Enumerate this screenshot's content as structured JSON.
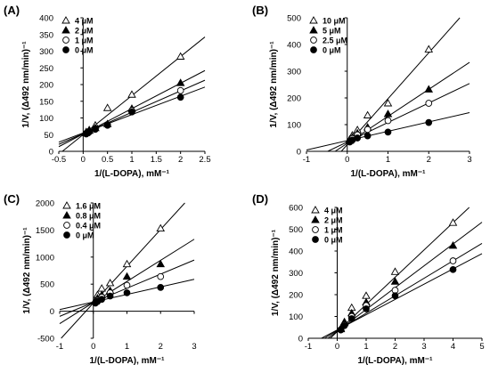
{
  "chart_data": [
    {
      "type": "scatter",
      "panel_label": "(A)",
      "xlabel": "1/(L-DOPA), mM⁻¹",
      "ylabel": "1/V, (Δ492 nm/min)⁻¹",
      "xlim": [
        -0.5,
        2.5
      ],
      "ylim": [
        0,
        400
      ],
      "xticks": [
        -0.5,
        0,
        0.5,
        1,
        1.5,
        2,
        2.5
      ],
      "xtick_labels": [
        "-0.5",
        "0",
        "0.5",
        "1",
        "1.5",
        "2",
        "2.5"
      ],
      "yticks": [
        0,
        50,
        100,
        150,
        200,
        250,
        300,
        350,
        400
      ],
      "ytick_labels": [
        "0",
        "50",
        "100",
        "150",
        "200",
        "250",
        "300",
        "350",
        "400"
      ],
      "legend_position": "top-left",
      "series": [
        {
          "name": "4 μM",
          "marker": "triangle-open",
          "x": [
            0.0625,
            0.125,
            0.25,
            0.5,
            1,
            2
          ],
          "y": [
            58,
            64,
            78,
            130,
            170,
            284
          ],
          "line_intercept": 50,
          "line_slope": 117
        },
        {
          "name": "2 μM",
          "marker": "triangle-filled",
          "x": [
            0.0625,
            0.125,
            0.25,
            0.5,
            1,
            2
          ],
          "y": [
            55,
            62,
            70,
            82,
            128,
            205
          ],
          "line_intercept": 52,
          "line_slope": 76
        },
        {
          "name": "1 μM",
          "marker": "circle-open",
          "x": [
            0.0625,
            0.125,
            0.25,
            0.5,
            1,
            2
          ],
          "y": [
            54,
            60,
            68,
            80,
            122,
            182
          ],
          "line_intercept": 53,
          "line_slope": 64
        },
        {
          "name": "0 μM",
          "marker": "circle-filled",
          "x": [
            0.0625,
            0.125,
            0.25,
            0.5,
            1,
            2
          ],
          "y": [
            52,
            58,
            66,
            78,
            118,
            162
          ],
          "line_intercept": 55,
          "line_slope": 55
        }
      ]
    },
    {
      "type": "scatter",
      "panel_label": "(B)",
      "xlabel": "1/(L-DOPA), mM⁻¹",
      "ylabel": "1/V, (Δ492 nm/min)⁻¹",
      "xlim": [
        -1,
        3
      ],
      "ylim": [
        0,
        500
      ],
      "xticks": [
        -1,
        0,
        1,
        2,
        3
      ],
      "xtick_labels": [
        "-1",
        "0",
        "1",
        "2",
        "3"
      ],
      "yticks": [
        0,
        100,
        200,
        300,
        400,
        500
      ],
      "ytick_labels": [
        "0",
        "100",
        "200",
        "300",
        "400",
        "500"
      ],
      "legend_position": "top-left",
      "series": [
        {
          "name": "10 μM",
          "marker": "triangle-open",
          "x": [
            0.0625,
            0.125,
            0.25,
            0.5,
            1,
            2
          ],
          "y": [
            45,
            60,
            80,
            135,
            180,
            382
          ],
          "line_intercept": 25,
          "line_slope": 172
        },
        {
          "name": "5 μM",
          "marker": "triangle-filled",
          "x": [
            0.0625,
            0.125,
            0.25,
            0.5,
            1,
            2
          ],
          "y": [
            40,
            52,
            68,
            90,
            140,
            232
          ],
          "line_intercept": 30,
          "line_slope": 101
        },
        {
          "name": "2.5 μM",
          "marker": "circle-open",
          "x": [
            0.0625,
            0.125,
            0.25,
            0.5,
            1,
            2
          ],
          "y": [
            38,
            48,
            62,
            82,
            115,
            180
          ],
          "line_intercept": 35,
          "line_slope": 73
        },
        {
          "name": "0 μM",
          "marker": "circle-filled",
          "x": [
            0.0625,
            0.125,
            0.25,
            0.5,
            1,
            2
          ],
          "y": [
            35,
            42,
            50,
            58,
            72,
            108
          ],
          "line_intercept": 40,
          "line_slope": 35
        }
      ]
    },
    {
      "type": "scatter",
      "panel_label": "(C)",
      "xlabel": "1/(L-DOPA), mM⁻¹",
      "ylabel": "1/V, (Δ492 nm/min)⁻¹",
      "xlim": [
        -1,
        3
      ],
      "ylim": [
        -500,
        2000
      ],
      "xticks": [
        -1,
        0,
        1,
        2,
        3
      ],
      "xtick_labels": [
        "-1",
        "0",
        "1",
        "2",
        "3"
      ],
      "yticks": [
        -500,
        0,
        500,
        1000,
        1500,
        2000
      ],
      "ytick_labels": [
        "-500",
        "0",
        "500",
        "1000",
        "1500",
        "2000"
      ],
      "legend_position": "top-left",
      "series": [
        {
          "name": "1.6 μM",
          "marker": "triangle-open",
          "x": [
            0.0625,
            0.125,
            0.25,
            0.5,
            1,
            2
          ],
          "y": [
            200,
            300,
            420,
            520,
            870,
            1530
          ],
          "line_intercept": 150,
          "line_slope": 680
        },
        {
          "name": "0.8 μM",
          "marker": "triangle-filled",
          "x": [
            0.0625,
            0.125,
            0.25,
            0.5,
            1,
            2
          ],
          "y": [
            180,
            240,
            300,
            380,
            640,
            870
          ],
          "line_intercept": 160,
          "line_slope": 390
        },
        {
          "name": "0.4 μM",
          "marker": "circle-open",
          "x": [
            0.0625,
            0.125,
            0.25,
            0.5,
            1,
            2
          ],
          "y": [
            160,
            200,
            260,
            340,
            480,
            640
          ],
          "line_intercept": 165,
          "line_slope": 260
        },
        {
          "name": "0 μM",
          "marker": "circle-filled",
          "x": [
            0.0625,
            0.125,
            0.25,
            0.5,
            1,
            2
          ],
          "y": [
            150,
            180,
            220,
            280,
            340,
            440
          ],
          "line_intercept": 170,
          "line_slope": 140
        }
      ]
    },
    {
      "type": "scatter",
      "panel_label": "(D)",
      "xlabel": "1/(L-DOPA), mM⁻¹",
      "ylabel": "1/V, (Δ492 nm/min)⁻¹",
      "xlim": [
        -1,
        5
      ],
      "ylim": [
        0,
        600
      ],
      "xticks": [
        -1,
        0,
        1,
        2,
        3,
        4,
        5
      ],
      "xtick_labels": [
        "-1",
        "0",
        "1",
        "2",
        "3",
        "4",
        "5"
      ],
      "yticks": [
        0,
        100,
        200,
        300,
        400,
        500,
        600
      ],
      "ytick_labels": [
        "0",
        "100",
        "200",
        "300",
        "400",
        "500",
        "600"
      ],
      "legend_position": "top-left",
      "series": [
        {
          "name": "4 μM",
          "marker": "triangle-open",
          "x": [
            0.125,
            0.25,
            0.5,
            1,
            2,
            4
          ],
          "y": [
            45,
            75,
            140,
            195,
            305,
            530
          ],
          "line_intercept": 30,
          "line_slope": 125
        },
        {
          "name": "2 μM",
          "marker": "triangle-filled",
          "x": [
            0.125,
            0.25,
            0.5,
            1,
            2,
            4
          ],
          "y": [
            42,
            70,
            115,
            165,
            260,
            425
          ],
          "line_intercept": 32,
          "line_slope": 100
        },
        {
          "name": "1 μM",
          "marker": "circle-open",
          "x": [
            0.125,
            0.25,
            0.5,
            1,
            2,
            4
          ],
          "y": [
            40,
            62,
            100,
            150,
            220,
            355
          ],
          "line_intercept": 35,
          "line_slope": 80
        },
        {
          "name": "0 μM",
          "marker": "circle-filled",
          "x": [
            0.125,
            0.25,
            0.5,
            1,
            2,
            4
          ],
          "y": [
            38,
            58,
            90,
            135,
            195,
            315
          ],
          "line_intercept": 38,
          "line_slope": 70
        }
      ]
    }
  ]
}
